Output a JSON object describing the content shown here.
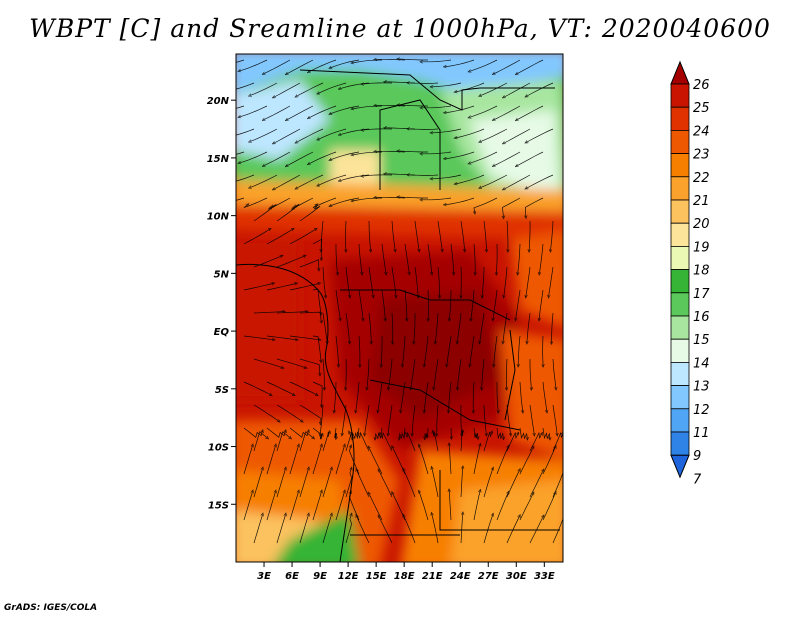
{
  "title": "WBPT [C] and Sreamline at 1000hPa, VT: 2020040600",
  "footer": "GrADS: IGES/COLA",
  "lat_labels": [
    "20N",
    "15N",
    "10N",
    "5N",
    "EQ",
    "5S",
    "10S",
    "15S"
  ],
  "lat_values": [
    20,
    15,
    10,
    5,
    0,
    -5,
    -10,
    -15
  ],
  "lon_labels": [
    "3E",
    "6E",
    "9E",
    "12E",
    "15E",
    "18E",
    "21E",
    "24E",
    "27E",
    "30E",
    "33E"
  ],
  "lon_values": [
    3,
    6,
    9,
    12,
    15,
    18,
    21,
    24,
    27,
    30,
    33
  ],
  "colorbar": {
    "labels": [
      "26",
      "25",
      "24",
      "23",
      "22",
      "21",
      "20",
      "19",
      "18",
      "17",
      "16",
      "15",
      "14",
      "13",
      "12",
      "11",
      "9",
      "7"
    ],
    "colors": [
      "#a50000",
      "#c81400",
      "#e03200",
      "#ee5800",
      "#f77f00",
      "#faa22c",
      "#fbc25e",
      "#fce49a",
      "#eafab4",
      "#35b435",
      "#5ac85a",
      "#a8e6a0",
      "#e6fae6",
      "#bde6ff",
      "#82c8ff",
      "#50a5f5",
      "#2f82e6",
      "#1e64dc"
    ]
  },
  "map_extent": {
    "lon": [
      0,
      35
    ],
    "lat": [
      -20,
      24
    ]
  }
}
